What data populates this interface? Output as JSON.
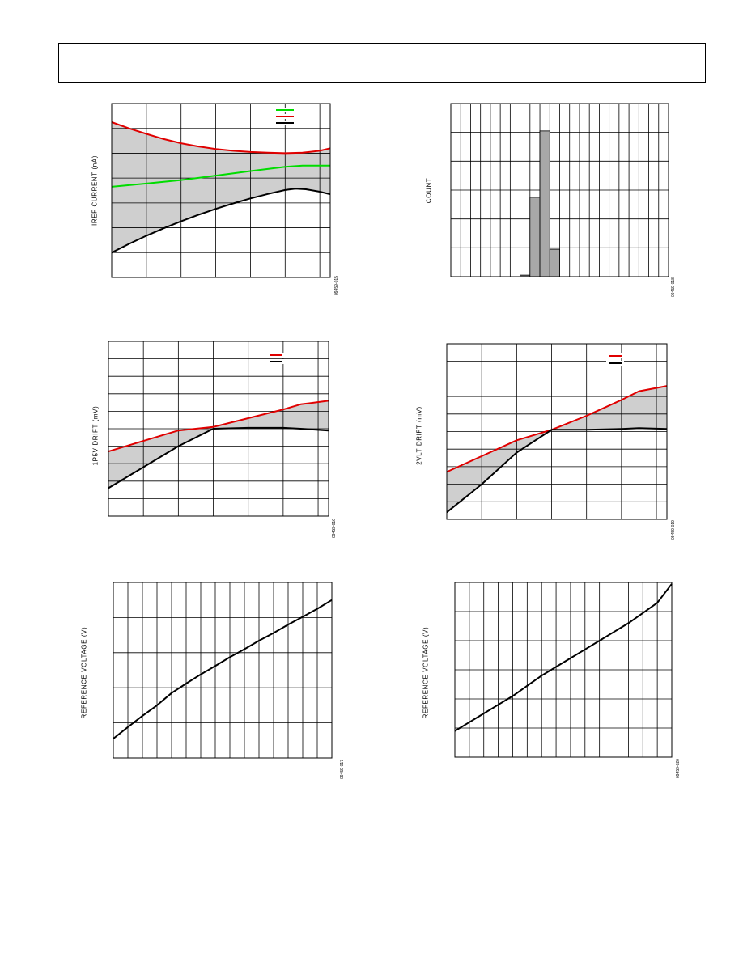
{
  "page": {
    "header_box": ""
  },
  "chart_data": [
    {
      "id": "iref",
      "type": "line",
      "ylabel": "IREF CURRENT (nA)",
      "figure_id": "09459-015",
      "grid": true,
      "xlim": [
        0,
        6.3
      ],
      "ylim": [
        0,
        7
      ],
      "gridlines_x": [
        1,
        2,
        3,
        4,
        5,
        6
      ],
      "gridlines_y": [
        1,
        2,
        3,
        4,
        5,
        6
      ],
      "shaded_band": true,
      "legend_placement": "top-right",
      "series": [
        {
          "color": "#00dd00",
          "x": [
            0,
            1,
            2,
            3,
            4,
            5,
            5.5,
            6.3
          ],
          "y": [
            3.65,
            3.78,
            3.92,
            4.1,
            4.28,
            4.45,
            4.5,
            4.5
          ]
        },
        {
          "color": "#e00000",
          "x": [
            0,
            0.5,
            1,
            1.5,
            2,
            2.5,
            3,
            3.5,
            4,
            4.5,
            5,
            5.5,
            6,
            6.3
          ],
          "y": [
            6.25,
            6.0,
            5.78,
            5.57,
            5.4,
            5.27,
            5.17,
            5.1,
            5.05,
            5.02,
            5.0,
            5.02,
            5.1,
            5.2
          ]
        },
        {
          "color": "#000000",
          "x": [
            0,
            0.5,
            1,
            1.5,
            2,
            2.5,
            3,
            3.5,
            4,
            4.5,
            5,
            5.3,
            5.6,
            6,
            6.3
          ],
          "y": [
            1.0,
            1.35,
            1.68,
            1.98,
            2.26,
            2.52,
            2.76,
            2.98,
            3.18,
            3.36,
            3.52,
            3.57,
            3.55,
            3.45,
            3.35
          ]
        }
      ]
    },
    {
      "id": "count",
      "type": "bar",
      "ylabel": "COUNT",
      "figure_id": "09459-018",
      "grid": true,
      "xlim": [
        0,
        22
      ],
      "ylim": [
        0,
        6
      ],
      "gridlines_x": [
        1,
        2,
        3,
        4,
        5,
        6,
        7,
        8,
        9,
        10,
        11,
        12,
        13,
        14,
        15,
        16,
        17,
        18,
        19,
        20,
        21
      ],
      "gridlines_y": [
        1,
        2,
        3,
        4,
        5
      ],
      "bars": [
        {
          "x0": 7,
          "x1": 8,
          "value": 0.05
        },
        {
          "x0": 8,
          "x1": 9,
          "value": 2.75
        },
        {
          "x0": 9,
          "x1": 10,
          "value": 5.05
        },
        {
          "x0": 10,
          "x1": 11,
          "value": 0.95
        }
      ]
    },
    {
      "id": "ip5v",
      "type": "line",
      "ylabel": "1P5V DRIFT (mV)",
      "figure_id": "09459-016",
      "grid": true,
      "xlim": [
        0,
        6.3
      ],
      "ylim": [
        0,
        10
      ],
      "gridlines_x": [
        1,
        2,
        3,
        4,
        5,
        6
      ],
      "gridlines_y": [
        1,
        2,
        3,
        4,
        5,
        6,
        7,
        8,
        9
      ],
      "shaded_band": true,
      "legend_placement": "top-right",
      "series": [
        {
          "color": "#e00000",
          "x": [
            0,
            1,
            2,
            3,
            4,
            5,
            5.5,
            6.3
          ],
          "y": [
            3.7,
            4.3,
            4.9,
            5.1,
            5.6,
            6.1,
            6.4,
            6.6
          ]
        },
        {
          "color": "#000000",
          "x": [
            0,
            1,
            2,
            3,
            4,
            5,
            5.5,
            6.3
          ],
          "y": [
            1.6,
            2.8,
            4.0,
            5.0,
            5.05,
            5.05,
            5.0,
            4.9
          ]
        }
      ]
    },
    {
      "id": "vlt2",
      "type": "line",
      "ylabel": "2VLT DRIFT (mV)",
      "figure_id": "09459-019",
      "grid": true,
      "xlim": [
        0,
        6.3
      ],
      "ylim": [
        0,
        10
      ],
      "gridlines_x": [
        1,
        2,
        3,
        4,
        5,
        6
      ],
      "gridlines_y": [
        1,
        2,
        3,
        4,
        5,
        6,
        7,
        8,
        9
      ],
      "shaded_band": true,
      "legend_placement": "top-right",
      "series": [
        {
          "color": "#e00000",
          "x": [
            0,
            1,
            2,
            3,
            4,
            5,
            5.5,
            6.3
          ],
          "y": [
            2.7,
            3.6,
            4.5,
            5.1,
            5.9,
            6.8,
            7.3,
            7.6
          ]
        },
        {
          "color": "#000000",
          "x": [
            0,
            1,
            2,
            3,
            4,
            5,
            5.5,
            6.3
          ],
          "y": [
            0.4,
            2.0,
            3.8,
            5.1,
            5.1,
            5.15,
            5.2,
            5.15
          ]
        }
      ]
    },
    {
      "id": "ref1",
      "type": "line",
      "ylabel": "REFERENCE VOLTAGE (V)",
      "figure_id": "09459-017",
      "grid": true,
      "xlim": [
        0,
        15
      ],
      "ylim": [
        0,
        5
      ],
      "gridlines_x": [
        1,
        2,
        3,
        4,
        5,
        6,
        7,
        8,
        9,
        10,
        11,
        12,
        13,
        14
      ],
      "gridlines_y": [
        1,
        2,
        3,
        4
      ],
      "series": [
        {
          "color": "#000000",
          "x": [
            0,
            1,
            2,
            3,
            4,
            5,
            6,
            7,
            8,
            9,
            10,
            11,
            12,
            13,
            14,
            15
          ],
          "y": [
            0.55,
            0.88,
            1.2,
            1.5,
            1.85,
            2.12,
            2.38,
            2.62,
            2.87,
            3.1,
            3.34,
            3.56,
            3.8,
            4.02,
            4.25,
            4.5
          ]
        }
      ]
    },
    {
      "id": "ref2",
      "type": "line",
      "ylabel": "REFERENCE VOLTAGE (V)",
      "figure_id": "09459-020",
      "grid": true,
      "xlim": [
        0,
        15
      ],
      "ylim": [
        0,
        6
      ],
      "gridlines_x": [
        1,
        2,
        3,
        4,
        5,
        6,
        7,
        8,
        9,
        10,
        11,
        12,
        13,
        14
      ],
      "gridlines_y": [
        1,
        2,
        3,
        4,
        5
      ],
      "series": [
        {
          "color": "#000000",
          "x": [
            0,
            1,
            2,
            3,
            4,
            5,
            6,
            7,
            8,
            9,
            10,
            11,
            12,
            13,
            14,
            15
          ],
          "y": [
            0.9,
            1.2,
            1.5,
            1.8,
            2.1,
            2.45,
            2.8,
            3.1,
            3.4,
            3.7,
            4.0,
            4.3,
            4.6,
            4.95,
            5.3,
            5.95
          ]
        }
      ]
    }
  ]
}
